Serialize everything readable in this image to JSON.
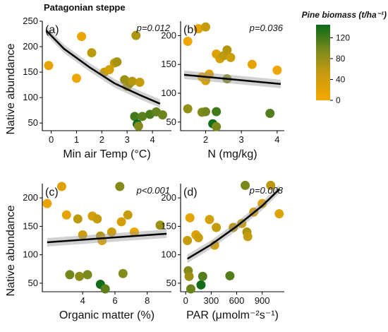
{
  "figure": {
    "title": "Patagonian steppe",
    "shared_ylabel": "Native abundance",
    "colorbar": {
      "title": "Pine biomass (t/ha⁻¹)",
      "ticks": [
        "0",
        "40",
        "80",
        "120"
      ],
      "range": [
        0,
        145
      ],
      "low_color": "#f5a800",
      "high_color": "#0a6b1a"
    }
  },
  "chart_data": [
    {
      "type": "scatter",
      "panel": "(a)",
      "p_value": "p=0.012",
      "xlabel": "Min air Temp (°C)",
      "ylabel": "Native abundance",
      "xlim": [
        -0.35,
        4.75
      ],
      "ylim": [
        35,
        250
      ],
      "xticks": [
        0,
        1,
        2,
        3,
        4
      ],
      "yticks": [
        50,
        100,
        150,
        200,
        250
      ],
      "fit": {
        "kind": "exp_decay",
        "points": [
          [
            -0.2,
            232
          ],
          [
            0.5,
            196
          ],
          [
            1.5,
            160
          ],
          [
            2.5,
            128
          ],
          [
            3.5,
            105
          ],
          [
            4.3,
            88
          ]
        ]
      },
      "points": [
        {
          "x": -0.1,
          "y": 163,
          "b": 10
        },
        {
          "x": 1.0,
          "y": 138,
          "b": 5
        },
        {
          "x": 1.2,
          "y": 220,
          "b": 8
        },
        {
          "x": 1.6,
          "y": 188,
          "b": 35
        },
        {
          "x": 2.1,
          "y": 150,
          "b": 25
        },
        {
          "x": 2.3,
          "y": 155,
          "b": 20
        },
        {
          "x": 2.5,
          "y": 168,
          "b": 30
        },
        {
          "x": 2.6,
          "y": 170,
          "b": 50
        },
        {
          "x": 2.9,
          "y": 135,
          "b": 55
        },
        {
          "x": 3.0,
          "y": 122,
          "b": 35
        },
        {
          "x": 3.1,
          "y": 128,
          "b": 60
        },
        {
          "x": 3.2,
          "y": 132,
          "b": 40
        },
        {
          "x": 3.35,
          "y": 222,
          "b": 45
        },
        {
          "x": 3.5,
          "y": 130,
          "b": 30
        },
        {
          "x": 3.3,
          "y": 63,
          "b": 110
        },
        {
          "x": 3.4,
          "y": 48,
          "b": 145
        },
        {
          "x": 3.6,
          "y": 63,
          "b": 95
        },
        {
          "x": 3.9,
          "y": 67,
          "b": 105
        },
        {
          "x": 4.15,
          "y": 72,
          "b": 90
        },
        {
          "x": 4.4,
          "y": 66,
          "b": 85
        },
        {
          "x": 3.45,
          "y": 44,
          "b": 70
        }
      ]
    },
    {
      "type": "scatter",
      "panel": "(b)",
      "p_value": "p=0.036",
      "xlabel": "N (mg/kg)",
      "ylabel": "",
      "xlim": [
        1.3,
        4.2
      ],
      "ylim": [
        35,
        225
      ],
      "xticks": [
        2,
        3,
        4
      ],
      "yticks": [
        50,
        100,
        150,
        200
      ],
      "fit": {
        "kind": "linear",
        "points": [
          [
            1.4,
            132
          ],
          [
            4.1,
            116
          ]
        ]
      },
      "points": [
        {
          "x": 1.5,
          "y": 190,
          "b": 5
        },
        {
          "x": 1.8,
          "y": 212,
          "b": 10
        },
        {
          "x": 2.0,
          "y": 215,
          "b": 30
        },
        {
          "x": 2.3,
          "y": 168,
          "b": 15
        },
        {
          "x": 2.4,
          "y": 160,
          "b": 20
        },
        {
          "x": 2.5,
          "y": 165,
          "b": 35
        },
        {
          "x": 2.6,
          "y": 175,
          "b": 40
        },
        {
          "x": 2.7,
          "y": 162,
          "b": 25
        },
        {
          "x": 1.9,
          "y": 128,
          "b": 5
        },
        {
          "x": 2.1,
          "y": 133,
          "b": 15
        },
        {
          "x": 2.0,
          "y": 122,
          "b": 20
        },
        {
          "x": 3.3,
          "y": 150,
          "b": 10
        },
        {
          "x": 4.0,
          "y": 140,
          "b": 5
        },
        {
          "x": 1.5,
          "y": 73,
          "b": 60
        },
        {
          "x": 1.9,
          "y": 67,
          "b": 70
        },
        {
          "x": 2.0,
          "y": 68,
          "b": 80
        },
        {
          "x": 2.2,
          "y": 47,
          "b": 140
        },
        {
          "x": 2.3,
          "y": 68,
          "b": 110
        },
        {
          "x": 2.3,
          "y": 42,
          "b": 75
        },
        {
          "x": 2.6,
          "y": 125,
          "b": 70
        },
        {
          "x": 3.8,
          "y": 65,
          "b": 100
        }
      ]
    },
    {
      "type": "scatter",
      "panel": "(c)",
      "p_value": "p<0.001",
      "xlabel": "Organic matter (%)",
      "ylabel": "Native abundance",
      "xlim": [
        1.5,
        9.5
      ],
      "ylim": [
        35,
        225
      ],
      "xticks": [
        4,
        6,
        8
      ],
      "yticks": [
        50,
        100,
        150,
        200
      ],
      "fit": {
        "kind": "linear",
        "points": [
          [
            1.8,
            122
          ],
          [
            9.2,
            137
          ]
        ]
      },
      "points": [
        {
          "x": 1.8,
          "y": 190,
          "b": 8
        },
        {
          "x": 2.7,
          "y": 220,
          "b": 15
        },
        {
          "x": 3.0,
          "y": 170,
          "b": 10
        },
        {
          "x": 3.7,
          "y": 163,
          "b": 35
        },
        {
          "x": 4.0,
          "y": 135,
          "b": 25
        },
        {
          "x": 4.6,
          "y": 168,
          "b": 20
        },
        {
          "x": 4.9,
          "y": 163,
          "b": 30
        },
        {
          "x": 5.1,
          "y": 133,
          "b": 40
        },
        {
          "x": 5.2,
          "y": 125,
          "b": 15
        },
        {
          "x": 5.8,
          "y": 140,
          "b": 25
        },
        {
          "x": 6.4,
          "y": 158,
          "b": 20
        },
        {
          "x": 6.8,
          "y": 170,
          "b": 30
        },
        {
          "x": 6.3,
          "y": 220,
          "b": 70
        },
        {
          "x": 7.2,
          "y": 140,
          "b": 5
        },
        {
          "x": 8.8,
          "y": 152,
          "b": 55
        },
        {
          "x": 3.2,
          "y": 65,
          "b": 80
        },
        {
          "x": 3.8,
          "y": 62,
          "b": 65
        },
        {
          "x": 4.3,
          "y": 65,
          "b": 75
        },
        {
          "x": 5.1,
          "y": 48,
          "b": 140
        },
        {
          "x": 5.4,
          "y": 40,
          "b": 95
        },
        {
          "x": 6.5,
          "y": 67,
          "b": 70
        }
      ]
    },
    {
      "type": "scatter",
      "panel": "(d)",
      "p_value": "p=0.008",
      "xlabel": "PAR (μmolm⁻²s⁻¹)",
      "ylabel": "",
      "xlim": [
        -60,
        1160
      ],
      "ylim": [
        35,
        225
      ],
      "xticks": [
        0,
        300,
        600,
        900
      ],
      "yticks": [
        50,
        100,
        150,
        200
      ],
      "fit": {
        "kind": "exp_growth",
        "points": [
          [
            20,
            93
          ],
          [
            300,
            118
          ],
          [
            600,
            150
          ],
          [
            900,
            186
          ],
          [
            1100,
            215
          ]
        ]
      },
      "points": [
        {
          "x": 20,
          "y": 125,
          "b": 30
        },
        {
          "x": 30,
          "y": 72,
          "b": 70
        },
        {
          "x": 40,
          "y": 62,
          "b": 55
        },
        {
          "x": 60,
          "y": 40,
          "b": 85
        },
        {
          "x": 50,
          "y": 165,
          "b": 10
        },
        {
          "x": 120,
          "y": 135,
          "b": 15
        },
        {
          "x": 150,
          "y": 130,
          "b": 25
        },
        {
          "x": 180,
          "y": 47,
          "b": 140
        },
        {
          "x": 200,
          "y": 62,
          "b": 100
        },
        {
          "x": 280,
          "y": 162,
          "b": 20
        },
        {
          "x": 340,
          "y": 117,
          "b": 20
        },
        {
          "x": 360,
          "y": 148,
          "b": 30
        },
        {
          "x": 520,
          "y": 63,
          "b": 100
        },
        {
          "x": 560,
          "y": 148,
          "b": 35
        },
        {
          "x": 660,
          "y": 155,
          "b": 25
        },
        {
          "x": 700,
          "y": 222,
          "b": 75
        },
        {
          "x": 720,
          "y": 140,
          "b": 45
        },
        {
          "x": 730,
          "y": 132,
          "b": 30
        },
        {
          "x": 800,
          "y": 175,
          "b": 15
        },
        {
          "x": 900,
          "y": 190,
          "b": 10
        },
        {
          "x": 1000,
          "y": 222,
          "b": 35
        },
        {
          "x": 1100,
          "y": 172,
          "b": 15
        }
      ]
    }
  ]
}
